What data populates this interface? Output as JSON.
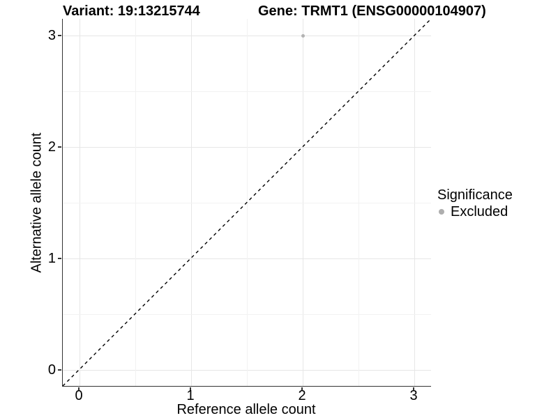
{
  "titles": {
    "variant": "Variant: 19:13215744",
    "gene": "Gene: TRMT1 (ENSG00000104907)"
  },
  "axes": {
    "x": {
      "label": "Reference allele count",
      "ticks": [
        "0",
        "1",
        "2",
        "3"
      ]
    },
    "y": {
      "label": "Alternative allele count",
      "ticks": [
        "0",
        "1",
        "2",
        "3"
      ]
    }
  },
  "legend": {
    "title": "Significance",
    "items": [
      {
        "label": "Excluded",
        "color": "#aeaeae"
      }
    ]
  },
  "colors": {
    "background": "#ffffff",
    "axis_line": "#333333",
    "major_grid": "#e6e6e6",
    "minor_grid": "#f2f2f2",
    "reference_line": "#000000",
    "point": "#b3b3b3"
  },
  "chart_data": {
    "type": "scatter",
    "title": "Variant: 19:13215744  /  Gene: TRMT1 (ENSG00000104907)",
    "xlabel": "Reference allele count",
    "ylabel": "Alternative allele count",
    "xlim": [
      -0.15,
      3.15
    ],
    "ylim": [
      -0.15,
      3.15
    ],
    "x_major_ticks": [
      0,
      1,
      2,
      3
    ],
    "y_major_ticks": [
      0,
      1,
      2,
      3
    ],
    "x_minor_gridlines": [
      0.5,
      1.5,
      2.5
    ],
    "y_minor_gridlines": [
      0.5,
      1.5,
      2.5
    ],
    "grid": true,
    "legend_position": "right",
    "reference_line": {
      "type": "identity",
      "equation": "y = x",
      "style": "dashed",
      "color": "#000000"
    },
    "series": [
      {
        "name": "Excluded",
        "color": "#b3b3b3",
        "points": [
          {
            "x": 2,
            "y": 3
          }
        ]
      }
    ]
  }
}
